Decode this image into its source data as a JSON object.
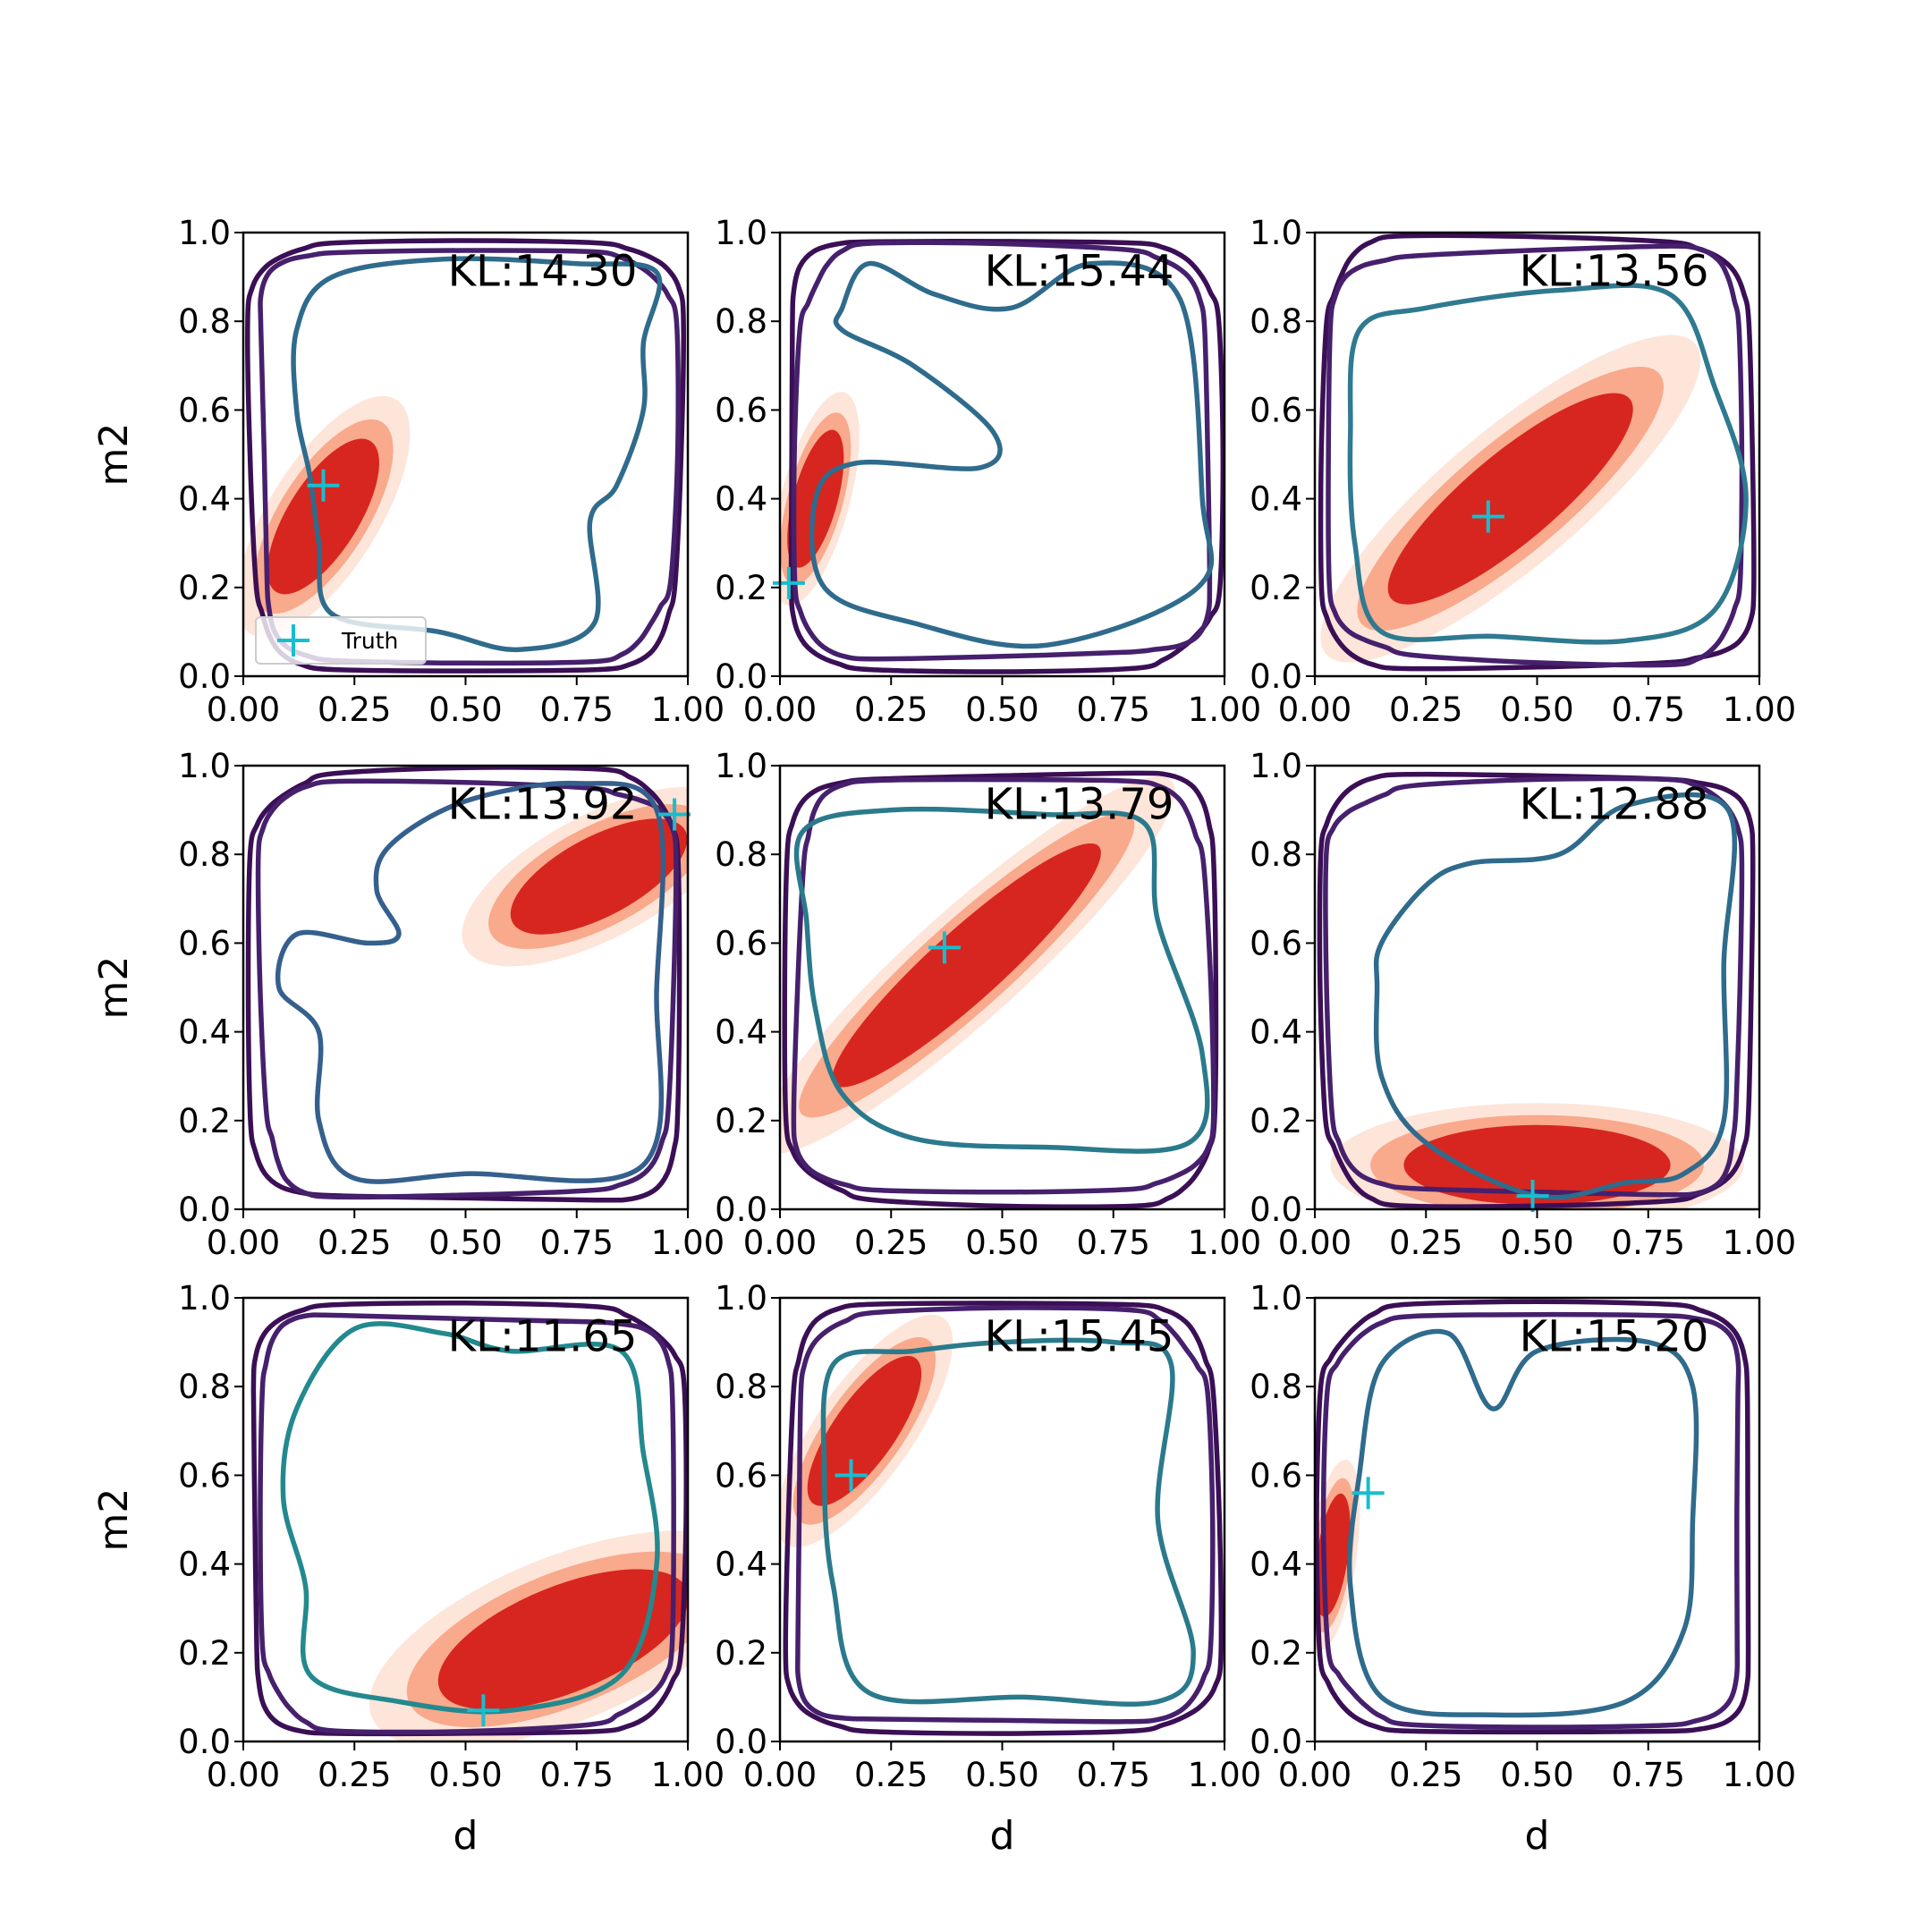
{
  "chart_data": {
    "type": "contour",
    "layout": {
      "rows": 3,
      "cols": 3
    },
    "xlabel": "d",
    "ylabel": "m2",
    "xlim": [
      0,
      1
    ],
    "ylim": [
      0,
      1
    ],
    "xticks": [
      "0.00",
      "0.25",
      "0.50",
      "0.75",
      "1.00"
    ],
    "yticks": [
      "0.0",
      "0.2",
      "0.4",
      "0.6",
      "0.8",
      "1.0"
    ],
    "legend": {
      "label": "Truth",
      "placement": "lower-left",
      "panel": 0
    },
    "colors": {
      "truth_marker": "#17becf",
      "posterior_fill": [
        "#fde5d9",
        "#f9a98c",
        "#d7261f"
      ],
      "contour_outer": "#3b0f55",
      "contour_mid": "#46206d",
      "contour_inner": "#2f6b8c"
    },
    "panels": [
      {
        "kl": "KL:14.30",
        "truth": [
          0.18,
          0.43
        ],
        "posterior": {
          "cx": 0.18,
          "cy": 0.36,
          "angle": 58,
          "a": 0.2,
          "b": 0.08
        },
        "inner_contour": [
          [
            0.12,
            0.78
          ],
          [
            0.2,
            0.9
          ],
          [
            0.45,
            0.94
          ],
          [
            0.75,
            0.93
          ],
          [
            0.93,
            0.91
          ],
          [
            0.9,
            0.75
          ],
          [
            0.9,
            0.6
          ],
          [
            0.84,
            0.43
          ],
          [
            0.78,
            0.35
          ],
          [
            0.79,
            0.12
          ],
          [
            0.62,
            0.06
          ],
          [
            0.44,
            0.1
          ],
          [
            0.2,
            0.14
          ],
          [
            0.17,
            0.3
          ],
          [
            0.15,
            0.45
          ],
          [
            0.12,
            0.6
          ]
        ],
        "inner_color": "#2f6b8c"
      },
      {
        "kl": "KL:15.44",
        "truth": [
          0.02,
          0.21
        ],
        "posterior": {
          "cx": 0.08,
          "cy": 0.4,
          "angle": 75,
          "a": 0.16,
          "b": 0.05
        },
        "inner_contour": [
          [
            0.14,
            0.83
          ],
          [
            0.2,
            0.93
          ],
          [
            0.35,
            0.86
          ],
          [
            0.52,
            0.83
          ],
          [
            0.7,
            0.93
          ],
          [
            0.9,
            0.85
          ],
          [
            0.95,
            0.4
          ],
          [
            0.94,
            0.2
          ],
          [
            0.6,
            0.07
          ],
          [
            0.3,
            0.12
          ],
          [
            0.1,
            0.2
          ],
          [
            0.08,
            0.4
          ],
          [
            0.17,
            0.48
          ],
          [
            0.45,
            0.47
          ],
          [
            0.48,
            0.55
          ],
          [
            0.3,
            0.7
          ],
          [
            0.14,
            0.78
          ]
        ],
        "inner_color": "#2f6b8c"
      },
      {
        "kl": "KL:13.56",
        "truth": [
          0.39,
          0.36
        ],
        "posterior": {
          "cx": 0.44,
          "cy": 0.4,
          "angle": 40,
          "a": 0.35,
          "b": 0.1
        },
        "inner_contour": [
          [
            0.1,
            0.78
          ],
          [
            0.25,
            0.83
          ],
          [
            0.55,
            0.87
          ],
          [
            0.8,
            0.86
          ],
          [
            0.9,
            0.65
          ],
          [
            0.97,
            0.4
          ],
          [
            0.9,
            0.15
          ],
          [
            0.7,
            0.08
          ],
          [
            0.4,
            0.09
          ],
          [
            0.15,
            0.1
          ],
          [
            0.09,
            0.3
          ],
          [
            0.08,
            0.55
          ]
        ],
        "inner_color": "#2f7a90"
      },
      {
        "kl": "KL:13.92",
        "truth": [
          0.97,
          0.89
        ],
        "posterior": {
          "cx": 0.8,
          "cy": 0.75,
          "angle": 28,
          "a": 0.22,
          "b": 0.09
        },
        "inner_contour": [
          [
            0.33,
            0.82
          ],
          [
            0.5,
            0.92
          ],
          [
            0.75,
            0.96
          ],
          [
            0.93,
            0.9
          ],
          [
            0.93,
            0.5
          ],
          [
            0.9,
            0.1
          ],
          [
            0.5,
            0.08
          ],
          [
            0.25,
            0.07
          ],
          [
            0.17,
            0.2
          ],
          [
            0.17,
            0.4
          ],
          [
            0.08,
            0.5
          ],
          [
            0.12,
            0.62
          ],
          [
            0.28,
            0.6
          ],
          [
            0.35,
            0.62
          ],
          [
            0.3,
            0.72
          ]
        ],
        "inner_color": "#35608d"
      },
      {
        "kl": "KL:13.79",
        "truth": [
          0.37,
          0.59
        ],
        "posterior": {
          "cx": 0.42,
          "cy": 0.55,
          "angle": 42,
          "a": 0.4,
          "b": 0.08
        },
        "inner_contour": [
          [
            0.05,
            0.85
          ],
          [
            0.25,
            0.9
          ],
          [
            0.6,
            0.89
          ],
          [
            0.82,
            0.87
          ],
          [
            0.85,
            0.65
          ],
          [
            0.95,
            0.35
          ],
          [
            0.92,
            0.15
          ],
          [
            0.6,
            0.14
          ],
          [
            0.3,
            0.16
          ],
          [
            0.14,
            0.26
          ],
          [
            0.08,
            0.45
          ],
          [
            0.06,
            0.65
          ]
        ],
        "inner_color": "#2a7a8c"
      },
      {
        "kl": "KL:12.88",
        "truth": [
          0.49,
          0.03
        ],
        "posterior": {
          "cx": 0.5,
          "cy": 0.1,
          "angle": 0,
          "a": 0.3,
          "b": 0.09
        },
        "inner_contour": [
          [
            0.15,
            0.6
          ],
          [
            0.25,
            0.73
          ],
          [
            0.35,
            0.78
          ],
          [
            0.55,
            0.8
          ],
          [
            0.7,
            0.91
          ],
          [
            0.93,
            0.9
          ],
          [
            0.92,
            0.55
          ],
          [
            0.92,
            0.2
          ],
          [
            0.83,
            0.08
          ],
          [
            0.7,
            0.06
          ],
          [
            0.5,
            0.03
          ],
          [
            0.25,
            0.15
          ],
          [
            0.15,
            0.3
          ],
          [
            0.14,
            0.5
          ]
        ],
        "inner_color": "#2f6b8c"
      },
      {
        "kl": "KL:11.65",
        "truth": [
          0.54,
          0.07
        ],
        "posterior": {
          "cx": 0.72,
          "cy": 0.23,
          "angle": 22,
          "a": 0.3,
          "b": 0.12
        },
        "inner_contour": [
          [
            0.12,
            0.75
          ],
          [
            0.25,
            0.93
          ],
          [
            0.45,
            0.92
          ],
          [
            0.6,
            0.88
          ],
          [
            0.85,
            0.88
          ],
          [
            0.9,
            0.65
          ],
          [
            0.93,
            0.4
          ],
          [
            0.85,
            0.15
          ],
          [
            0.6,
            0.07
          ],
          [
            0.35,
            0.09
          ],
          [
            0.15,
            0.15
          ],
          [
            0.14,
            0.35
          ],
          [
            0.09,
            0.55
          ]
        ],
        "inner_color": "#23898e"
      },
      {
        "kl": "KL:15.45",
        "truth": [
          0.16,
          0.6
        ],
        "posterior": {
          "cx": 0.19,
          "cy": 0.7,
          "angle": 55,
          "a": 0.2,
          "b": 0.07
        },
        "inner_contour": [
          [
            0.12,
            0.85
          ],
          [
            0.3,
            0.88
          ],
          [
            0.5,
            0.9
          ],
          [
            0.75,
            0.9
          ],
          [
            0.88,
            0.85
          ],
          [
            0.85,
            0.5
          ],
          [
            0.93,
            0.2
          ],
          [
            0.85,
            0.09
          ],
          [
            0.55,
            0.1
          ],
          [
            0.2,
            0.11
          ],
          [
            0.12,
            0.35
          ],
          [
            0.1,
            0.6
          ]
        ],
        "inner_color": "#2a7a8c"
      },
      {
        "kl": "KL:15.20",
        "truth": [
          0.12,
          0.56
        ],
        "posterior": {
          "cx": 0.04,
          "cy": 0.42,
          "angle": 82,
          "a": 0.14,
          "b": 0.035
        },
        "inner_contour": [
          [
            0.15,
            0.85
          ],
          [
            0.3,
            0.92
          ],
          [
            0.4,
            0.75
          ],
          [
            0.5,
            0.88
          ],
          [
            0.75,
            0.9
          ],
          [
            0.85,
            0.8
          ],
          [
            0.85,
            0.5
          ],
          [
            0.83,
            0.25
          ],
          [
            0.7,
            0.09
          ],
          [
            0.4,
            0.06
          ],
          [
            0.15,
            0.1
          ],
          [
            0.08,
            0.35
          ],
          [
            0.1,
            0.6
          ]
        ],
        "inner_color": "#2f6b8c"
      }
    ]
  }
}
